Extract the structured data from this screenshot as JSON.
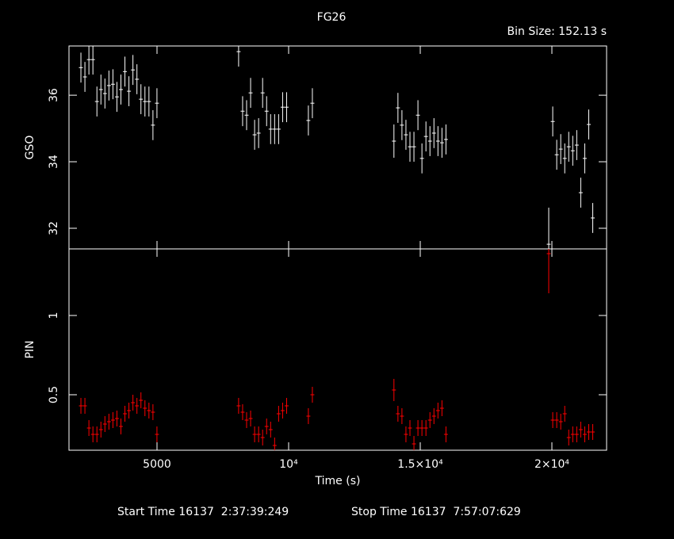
{
  "title": "FG26",
  "bin_size": "Bin Size: 152.13 s",
  "start_time": "Start Time 16137  2:37:39:249",
  "stop_time": "Stop Time 16137  7:57:07:629",
  "chart_data": [
    {
      "type": "errorbar",
      "ylabel": "GSO",
      "x": [
        2110,
        2262,
        2414,
        2566,
        2718,
        2870,
        3022,
        3174,
        3326,
        3478,
        3630,
        3782,
        3934,
        4086,
        4238,
        4390,
        4542,
        4694,
        4846,
        4998,
        8100,
        8252,
        8404,
        8556,
        8708,
        8860,
        9012,
        9164,
        9316,
        9468,
        9620,
        9772,
        9924,
        10750,
        10902,
        14000,
        14152,
        14304,
        14456,
        14608,
        14760,
        14912,
        15064,
        15216,
        15368,
        15520,
        15672,
        15824,
        15976,
        19880,
        20032,
        20184,
        20336,
        20488,
        20640,
        20792,
        20944,
        21096,
        21248,
        21400,
        21552
      ],
      "xlim": [
        1657,
        22078
      ],
      "xticks": [
        5000,
        10000,
        15000,
        20000
      ],
      "ylim": [
        31.38,
        37.48
      ],
      "yticks": [
        32,
        34,
        36
      ],
      "series": [
        {
          "color": "#ffffff",
          "values": [
            36.83,
            36.55,
            37.07,
            37.07,
            35.81,
            36.17,
            36.05,
            36.29,
            36.33,
            35.95,
            36.17,
            36.71,
            36.12,
            36.76,
            36.48,
            35.88,
            35.81,
            35.81,
            35.1,
            35.76,
            37.31,
            35.52,
            35.4,
            36.07,
            34.81,
            34.86,
            36.07,
            35.52,
            34.98,
            34.98,
            34.98,
            35.64,
            35.64,
            35.24,
            35.76,
            34.62,
            35.62,
            35.1,
            34.81,
            34.45,
            34.45,
            35.4,
            34.1,
            34.76,
            34.62,
            34.86,
            34.62,
            34.57,
            34.67,
            31.52,
            35.21,
            34.21,
            34.38,
            34.1,
            34.45,
            34.33,
            34.5,
            33.07,
            34.1,
            35.12,
            32.31
          ],
          "errors": [
            0.45,
            0.45,
            0.45,
            0.45,
            0.45,
            0.45,
            0.45,
            0.45,
            0.45,
            0.45,
            0.45,
            0.45,
            0.45,
            0.45,
            0.45,
            0.45,
            0.45,
            0.45,
            0.45,
            0.45,
            0.45,
            0.45,
            0.45,
            0.45,
            0.45,
            0.45,
            0.45,
            0.45,
            0.45,
            0.45,
            0.45,
            0.45,
            0.45,
            0.45,
            0.45,
            0.5,
            0.45,
            0.45,
            0.45,
            0.45,
            0.45,
            0.45,
            0.45,
            0.45,
            0.45,
            0.45,
            0.45,
            0.45,
            0.45,
            1.1,
            0.45,
            0.45,
            0.45,
            0.45,
            0.45,
            0.45,
            0.45,
            0.45,
            0.45,
            0.45,
            0.45
          ]
        }
      ]
    },
    {
      "type": "errorbar",
      "ylabel": "PIN",
      "xlabel": "Time (s)",
      "x": [
        2110,
        2262,
        2414,
        2566,
        2718,
        2870,
        3022,
        3174,
        3326,
        3478,
        3630,
        3782,
        3934,
        4086,
        4238,
        4390,
        4542,
        4694,
        4846,
        4998,
        8100,
        8252,
        8404,
        8556,
        8708,
        8860,
        9012,
        9164,
        9316,
        9468,
        9620,
        9772,
        9924,
        10750,
        10902,
        14000,
        14152,
        14304,
        14456,
        14608,
        14760,
        14912,
        15064,
        15216,
        15368,
        15520,
        15672,
        15824,
        15976,
        19880,
        20032,
        20184,
        20336,
        20488,
        20640,
        20792,
        20944,
        21096,
        21248,
        21400,
        21552
      ],
      "xlim": [
        1657,
        22078
      ],
      "xticks": [
        5000,
        {
          "value": 10000,
          "label": "10⁴"
        },
        {
          "value": 15000,
          "label": "1.5×10⁴"
        },
        {
          "value": 20000,
          "label": "2×10⁴"
        }
      ],
      "ylim": [
        0.15,
        1.42
      ],
      "yticks": [
        0.5,
        1
      ],
      "series": [
        {
          "color": "#ff0000",
          "values": [
            0.43,
            0.43,
            0.29,
            0.25,
            0.25,
            0.28,
            0.315,
            0.33,
            0.34,
            0.35,
            0.3,
            0.38,
            0.4,
            0.45,
            0.43,
            0.465,
            0.415,
            0.4,
            0.39,
            0.25,
            0.43,
            0.39,
            0.34,
            0.35,
            0.25,
            0.25,
            0.23,
            0.3,
            0.28,
            0.18,
            0.38,
            0.4,
            0.43,
            0.365,
            0.5,
            0.53,
            0.38,
            0.365,
            0.25,
            0.29,
            0.19,
            0.29,
            0.29,
            0.29,
            0.34,
            0.365,
            0.4,
            0.415,
            0.25,
            1.39,
            0.34,
            0.34,
            0.33,
            0.38,
            0.23,
            0.25,
            0.25,
            0.28,
            0.25,
            0.265,
            0.265
          ],
          "errors": [
            0.05,
            0.05,
            0.05,
            0.05,
            0.05,
            0.05,
            0.05,
            0.05,
            0.05,
            0.05,
            0.05,
            0.05,
            0.05,
            0.05,
            0.05,
            0.05,
            0.05,
            0.05,
            0.05,
            0.05,
            0.05,
            0.05,
            0.05,
            0.05,
            0.05,
            0.05,
            0.05,
            0.05,
            0.05,
            0.05,
            0.05,
            0.05,
            0.05,
            0.05,
            0.05,
            0.07,
            0.05,
            0.05,
            0.05,
            0.05,
            0.05,
            0.05,
            0.05,
            0.05,
            0.05,
            0.05,
            0.05,
            0.05,
            0.05,
            0.25,
            0.05,
            0.05,
            0.05,
            0.05,
            0.05,
            0.05,
            0.05,
            0.05,
            0.05,
            0.05,
            0.05
          ]
        }
      ]
    }
  ]
}
